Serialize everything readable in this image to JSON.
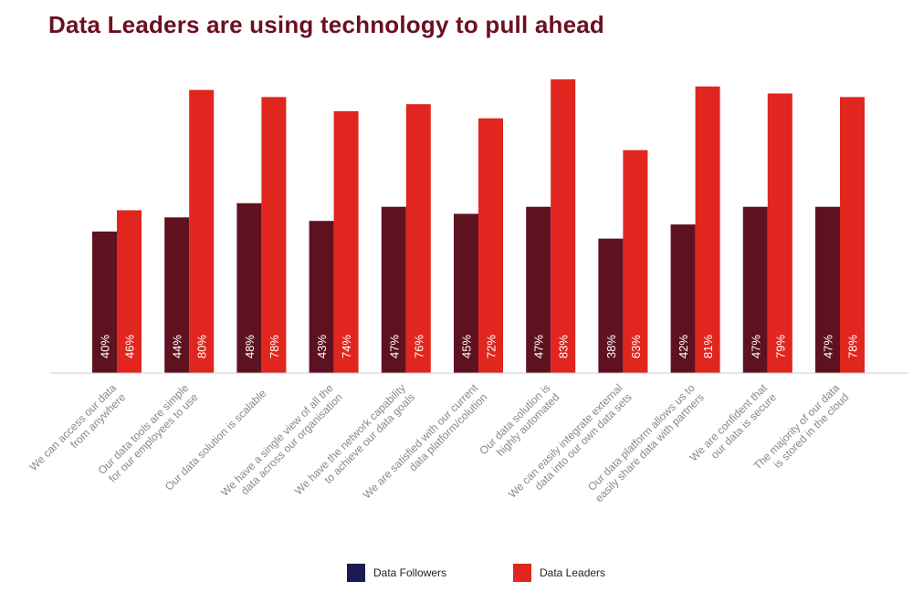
{
  "title": "Data Leaders are using technology to pull ahead",
  "colors": {
    "title": "#6b1020",
    "followers_bar": "#5e1220",
    "leaders_bar": "#e0261e",
    "followers_legend": "#1a1a55",
    "leaders_legend": "#e0261e",
    "axis": "#cccccc",
    "category_label": "#888888",
    "bar_label": "#ffffff"
  },
  "legend": {
    "followers": "Data Followers",
    "leaders": "Data Leaders"
  },
  "chart_data": {
    "type": "bar",
    "title": "Data Leaders are using technology to pull ahead",
    "categories": [
      [
        "We can access our data",
        "from anywhere"
      ],
      [
        "Our data tools are simple",
        "for our employees to use"
      ],
      [
        "Our data solution is scalable"
      ],
      [
        "We have a single view of all the",
        "data across our organisation"
      ],
      [
        "We have the network capability",
        "to achieve our data goals"
      ],
      [
        "We are satisfied with our current",
        "data platform/colution"
      ],
      [
        "Our data solution is",
        "highly automated"
      ],
      [
        "We can easily integrate external",
        "data into our own data sets"
      ],
      [
        "Our data platform allows us to",
        "easily share data with partners"
      ],
      [
        "We are confident that",
        "our data is secure"
      ],
      [
        "The majority of our data",
        "is stored in the cloud"
      ]
    ],
    "series": [
      {
        "name": "Data Followers",
        "values": [
          40,
          44,
          48,
          43,
          47,
          45,
          47,
          38,
          42,
          47,
          47
        ]
      },
      {
        "name": "Data Leaders",
        "values": [
          46,
          80,
          78,
          74,
          76,
          72,
          83,
          63,
          81,
          79,
          78
        ]
      }
    ],
    "value_suffix": "%",
    "ylim": [
      0,
      100
    ],
    "grid": false,
    "legend_position": "bottom-center"
  }
}
